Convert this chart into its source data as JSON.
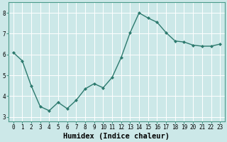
{
  "x": [
    0,
    1,
    2,
    3,
    4,
    5,
    6,
    7,
    8,
    9,
    10,
    11,
    12,
    13,
    14,
    15,
    16,
    17,
    18,
    19,
    20,
    21,
    22,
    23
  ],
  "y": [
    6.1,
    5.7,
    4.5,
    3.5,
    3.3,
    3.7,
    3.4,
    3.8,
    4.35,
    4.6,
    4.4,
    4.9,
    5.85,
    7.05,
    8.0,
    7.75,
    7.55,
    7.05,
    6.65,
    6.6,
    6.45,
    6.4,
    6.4,
    6.5
  ],
  "line_color": "#2d7a6e",
  "marker": "D",
  "markersize": 2.0,
  "linewidth": 1.0,
  "xlabel": "Humidex (Indice chaleur)",
  "xlim": [
    -0.5,
    23.5
  ],
  "ylim": [
    2.8,
    8.5
  ],
  "yticks": [
    3,
    4,
    5,
    6,
    7,
    8
  ],
  "xticks": [
    0,
    1,
    2,
    3,
    4,
    5,
    6,
    7,
    8,
    9,
    10,
    11,
    12,
    13,
    14,
    15,
    16,
    17,
    18,
    19,
    20,
    21,
    22,
    23
  ],
  "xtick_labels": [
    "0",
    "1",
    "2",
    "3",
    "4",
    "5",
    "6",
    "7",
    "8",
    "9",
    "10",
    "11",
    "12",
    "13",
    "14",
    "15",
    "16",
    "17",
    "18",
    "19",
    "20",
    "21",
    "22",
    "23"
  ],
  "background_color": "#cce8e8",
  "grid_color": "#ffffff",
  "tick_fontsize": 5.5,
  "xlabel_fontsize": 7.5,
  "spine_color": "#4a9a8a"
}
